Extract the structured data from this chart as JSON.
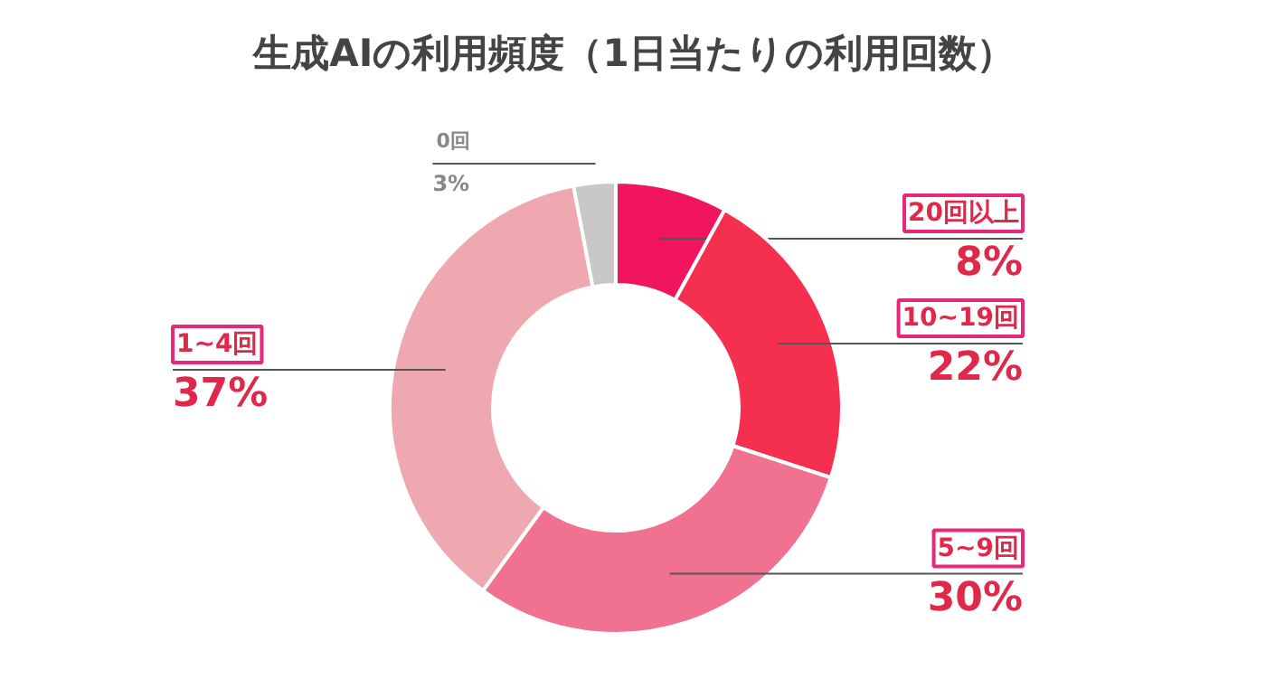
{
  "chart_data": {
    "type": "donut",
    "title": "生成AIの利用頻度（1日当たりの利用回数）",
    "categories": [
      "20回以上",
      "10~19回",
      "5~9回",
      "1~4回",
      "0回"
    ],
    "values": [
      8,
      22,
      30,
      37,
      3
    ],
    "value_labels": [
      "8%",
      "22%",
      "30%",
      "37%",
      "3%"
    ],
    "colors": [
      "#f0155c",
      "#f5304e",
      "#f07290",
      "#f0a8b0",
      "#c8c8c8"
    ]
  }
}
